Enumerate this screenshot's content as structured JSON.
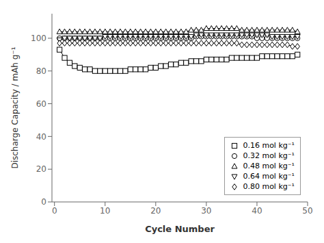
{
  "chart_data": {
    "type": "line",
    "title": "",
    "xlabel": "Cycle Number",
    "ylabel": "Discharge Capacity / mAh g⁻¹",
    "xlim": [
      -0.5,
      50
    ],
    "ylim": [
      0,
      115
    ],
    "xticks": [
      0,
      10,
      20,
      30,
      40,
      50
    ],
    "yticks": [
      0,
      20,
      40,
      60,
      80,
      100
    ],
    "grid": false,
    "legend": "lower right",
    "x": [
      1,
      2,
      3,
      4,
      5,
      6,
      7,
      8,
      9,
      10,
      11,
      12,
      13,
      14,
      15,
      16,
      17,
      18,
      19,
      20,
      21,
      22,
      23,
      24,
      25,
      26,
      27,
      28,
      29,
      30,
      31,
      32,
      33,
      34,
      35,
      36,
      37,
      38,
      39,
      40,
      41,
      42,
      43,
      44,
      45,
      46,
      47,
      48
    ],
    "series": [
      {
        "name": "0.16 mol kg⁻¹",
        "color": "black",
        "marker": "square",
        "line_style": "solid",
        "values": [
          93,
          88,
          85,
          83,
          82,
          81,
          81,
          80,
          80,
          80,
          80,
          80,
          80,
          80,
          81,
          81,
          81,
          81,
          82,
          82,
          83,
          83,
          84,
          84,
          85,
          85,
          86,
          86,
          86,
          87,
          87,
          87,
          87,
          87,
          88,
          88,
          88,
          88,
          88,
          88,
          89,
          89,
          89,
          89,
          89,
          89,
          89,
          90
        ]
      },
      {
        "name": "0.32 mol kg⁻¹",
        "color": "black",
        "marker": "circle",
        "line_style": "solid",
        "values": [
          100,
          100,
          100,
          100,
          100,
          100,
          100,
          100,
          100,
          100,
          100,
          100,
          100,
          100,
          100,
          100,
          100,
          100,
          100,
          100,
          100,
          100,
          100,
          100,
          100,
          100,
          100,
          101,
          101,
          101,
          101,
          101,
          101,
          101,
          101,
          101,
          101,
          101,
          101,
          100,
          100,
          100,
          100,
          100,
          100,
          100,
          100,
          100
        ]
      },
      {
        "name": "0.48 mol kg⁻¹",
        "color": "black",
        "marker": "triangle-up",
        "line_style": "solid",
        "values": [
          104,
          104,
          104,
          104,
          104,
          104,
          104,
          104,
          104,
          104,
          104,
          104,
          104,
          104,
          104,
          104,
          104,
          104,
          104,
          104,
          104,
          104,
          104,
          104,
          104,
          104,
          105,
          105,
          105,
          106,
          106,
          106,
          106,
          106,
          106,
          106,
          105,
          105,
          105,
          105,
          105,
          105,
          105,
          105,
          105,
          105,
          105,
          104
        ]
      },
      {
        "name": "0.64 mol kg⁻¹",
        "color": "black",
        "marker": "triangle-down",
        "line_style": "solid",
        "values": [
          99,
          100,
          100,
          100,
          100,
          100,
          100,
          100,
          100,
          101,
          101,
          101,
          101,
          101,
          101,
          101,
          101,
          101,
          101,
          101,
          101,
          101,
          101,
          101,
          101,
          101,
          101,
          102,
          102,
          102,
          102,
          102,
          102,
          102,
          102,
          102,
          102,
          102,
          102,
          102,
          102,
          102,
          101,
          101,
          101,
          101,
          101,
          101
        ]
      },
      {
        "name": "0.80 mol kg⁻¹",
        "color": "black",
        "marker": "diamond",
        "line_style": "solid",
        "values": [
          97,
          97,
          97,
          97,
          97,
          97,
          97,
          97,
          97,
          97,
          97,
          97,
          97,
          97,
          97,
          97,
          97,
          97,
          97,
          97,
          97,
          97,
          97,
          97,
          97,
          97,
          97,
          97,
          97,
          97,
          97,
          97,
          97,
          97,
          97,
          97,
          96,
          96,
          96,
          96,
          96,
          96,
          96,
          96,
          96,
          96,
          95,
          95
        ]
      }
    ]
  }
}
